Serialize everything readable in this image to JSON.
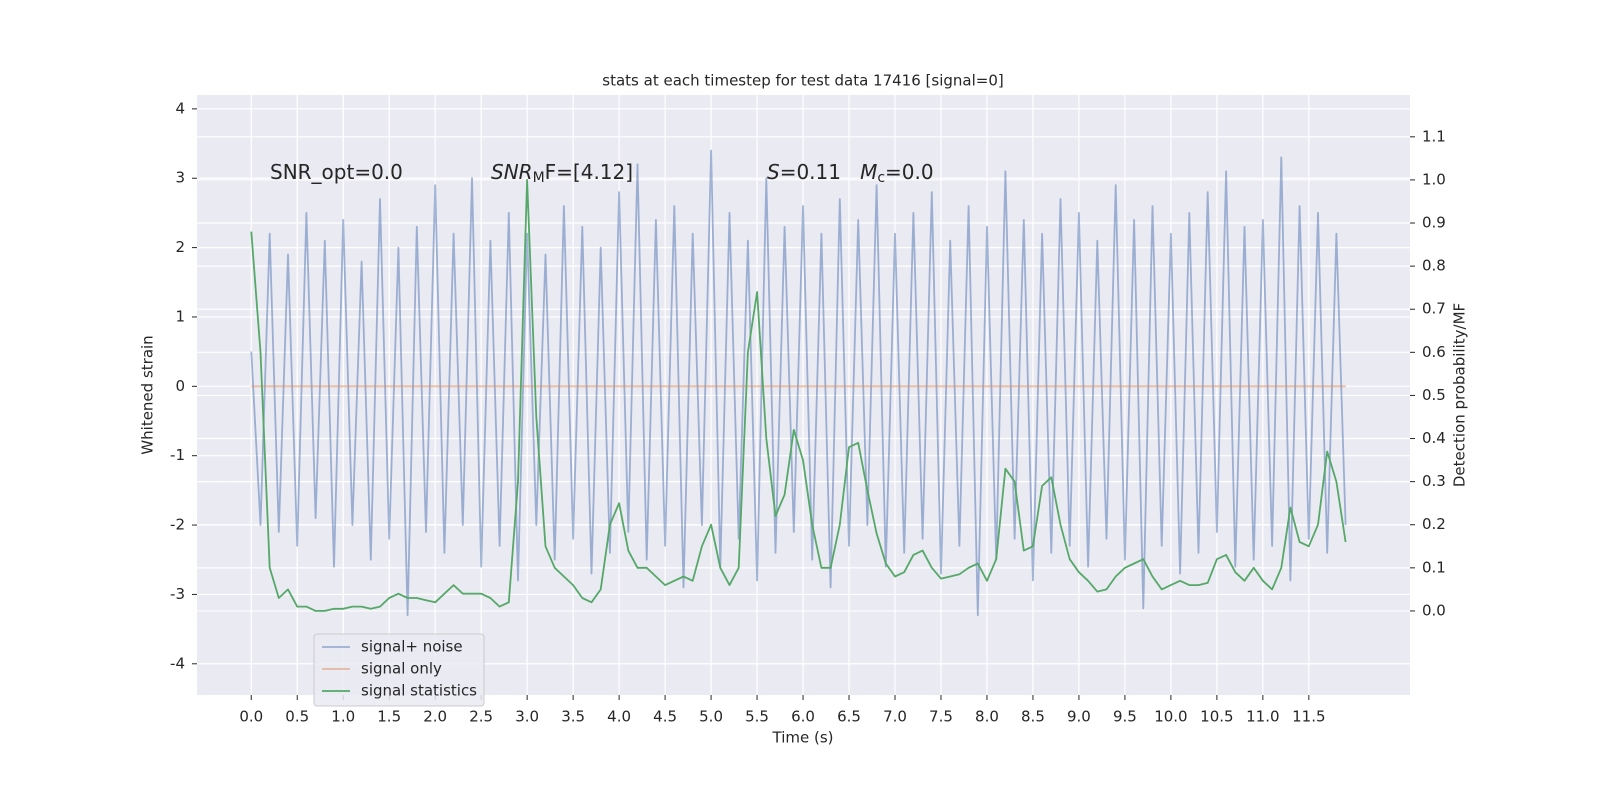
{
  "chart_data": {
    "type": "line",
    "title": "stats at each timestep for test data 17416 [signal=0]",
    "xlabel": "Time (s)",
    "ylabel": "Whitened strain",
    "y2label": "Detection probability/MF",
    "annotations": [
      {
        "parts": [
          "SNR_opt=0.0"
        ]
      },
      {
        "parts": [
          "SNR",
          "M",
          "F=[4.12]"
        ]
      },
      {
        "parts": [
          "S",
          "=0.11   ",
          "M",
          "c",
          "=0.0"
        ]
      }
    ],
    "xlim": [
      -0.59,
      12.6
    ],
    "ylim": [
      -4.45,
      4.2
    ],
    "y2lim": [
      -0.195,
      1.197
    ],
    "xticks": [
      {
        "value": 0,
        "label": "0.0"
      },
      0.5,
      {
        "value": 1,
        "label": "1.0"
      },
      1.5,
      {
        "value": 2,
        "label": "2.0"
      },
      2.5,
      {
        "value": 3,
        "label": "3.0"
      },
      3.5,
      {
        "value": 4,
        "label": "4.0"
      },
      4.5,
      {
        "value": 5,
        "label": "5.0"
      },
      5.5,
      {
        "value": 6,
        "label": "6.0"
      },
      6.5,
      {
        "value": 7,
        "label": "7.0"
      },
      7.5,
      {
        "value": 8,
        "label": "8.0"
      },
      8.5,
      {
        "value": 9,
        "label": "9.0"
      },
      9.5,
      {
        "value": 10,
        "label": "10.0"
      },
      10.5,
      {
        "value": 11,
        "label": "11.0"
      },
      11.5
    ],
    "yticks": [
      -4,
      -3,
      -2,
      -1,
      0,
      1,
      2,
      3,
      4
    ],
    "y2ticks": [
      {
        "value": 0,
        "label": "0.0"
      },
      0.1,
      0.2,
      0.3,
      0.4,
      0.5,
      0.6,
      0.7,
      0.8,
      0.9,
      {
        "value": 1,
        "label": "1.0"
      },
      1.1
    ],
    "grid": true,
    "legend": "lower left",
    "x": [
      0.0,
      0.1,
      0.2,
      0.3,
      0.4,
      0.5,
      0.6,
      0.7,
      0.8,
      0.9,
      1.0,
      1.1,
      1.2,
      1.3,
      1.4,
      1.5,
      1.6,
      1.7,
      1.8,
      1.9,
      2.0,
      2.1,
      2.2,
      2.3,
      2.4,
      2.5,
      2.6,
      2.7,
      2.8,
      2.9,
      3.0,
      3.1,
      3.2,
      3.3,
      3.4,
      3.5,
      3.6,
      3.7,
      3.8,
      3.9,
      4.0,
      4.1,
      4.2,
      4.3,
      4.4,
      4.5,
      4.6,
      4.7,
      4.8,
      4.9,
      5.0,
      5.1,
      5.2,
      5.3,
      5.4,
      5.5,
      5.6,
      5.7,
      5.8,
      5.9,
      6.0,
      6.1,
      6.2,
      6.3,
      6.4,
      6.5,
      6.6,
      6.7,
      6.8,
      6.9,
      7.0,
      7.1,
      7.2,
      7.3,
      7.4,
      7.5,
      7.6,
      7.7,
      7.8,
      7.9,
      8.0,
      8.1,
      8.2,
      8.3,
      8.4,
      8.5,
      8.6,
      8.7,
      8.8,
      8.9,
      9.0,
      9.1,
      9.2,
      9.3,
      9.4,
      9.5,
      9.6,
      9.7,
      9.8,
      9.9,
      10.0,
      10.1,
      10.2,
      10.3,
      10.4,
      10.5,
      10.6,
      10.7,
      10.8,
      10.9,
      11.0,
      11.1,
      11.2,
      11.3,
      11.4,
      11.5,
      11.6,
      11.7,
      11.8,
      11.9
    ],
    "series": [
      {
        "name": "signal+ noise",
        "color": "#4c72b0",
        "alpha": 0.5,
        "values": [
          0.5,
          -2.0,
          2.2,
          -2.1,
          1.9,
          -2.3,
          2.5,
          -1.9,
          2.1,
          -2.6,
          2.4,
          -2.0,
          1.8,
          -2.5,
          2.7,
          -2.2,
          2.0,
          -3.3,
          2.3,
          -2.1,
          2.9,
          -2.4,
          2.2,
          -2.0,
          3.0,
          -2.6,
          2.1,
          -2.3,
          2.5,
          -2.8,
          2.2,
          -2.0,
          1.9,
          -2.5,
          2.6,
          -2.2,
          2.3,
          -2.7,
          2.0,
          -2.4,
          2.8,
          -2.1,
          3.2,
          -2.5,
          2.4,
          -2.3,
          2.6,
          -2.9,
          2.2,
          -2.0,
          3.4,
          -2.6,
          2.5,
          -2.2,
          2.1,
          -2.8,
          3.0,
          -2.4,
          2.3,
          -2.1,
          2.6,
          -2.5,
          2.2,
          -2.9,
          2.7,
          -2.3,
          2.4,
          -2.0,
          2.9,
          -2.6,
          2.2,
          -2.4,
          2.5,
          -2.2,
          2.8,
          -2.7,
          2.1,
          -2.3,
          2.6,
          -3.3,
          2.3,
          -2.5,
          3.1,
          -2.2,
          2.4,
          -2.8,
          2.2,
          -2.4,
          2.7,
          -2.3,
          2.5,
          -2.6,
          2.1,
          -2.2,
          2.9,
          -2.5,
          2.4,
          -3.2,
          2.6,
          -2.3,
          2.2,
          -2.7,
          2.5,
          -2.4,
          2.8,
          -2.1,
          3.1,
          -2.6,
          2.3,
          -2.5,
          2.4,
          -2.3,
          3.3,
          -2.8,
          2.6,
          -2.2,
          2.5,
          -2.4,
          2.2,
          -2.0
        ]
      },
      {
        "name": "signal only",
        "color": "#dd8452",
        "alpha": 0.5,
        "values": [
          0,
          0,
          0,
          0,
          0,
          0,
          0,
          0,
          0,
          0,
          0,
          0,
          0,
          0,
          0,
          0,
          0,
          0,
          0,
          0,
          0,
          0,
          0,
          0,
          0,
          0,
          0,
          0,
          0,
          0,
          0,
          0,
          0,
          0,
          0,
          0,
          0,
          0,
          0,
          0,
          0,
          0,
          0,
          0,
          0,
          0,
          0,
          0,
          0,
          0,
          0,
          0,
          0,
          0,
          0,
          0,
          0,
          0,
          0,
          0,
          0,
          0,
          0,
          0,
          0,
          0,
          0,
          0,
          0,
          0,
          0,
          0,
          0,
          0,
          0,
          0,
          0,
          0,
          0,
          0,
          0,
          0,
          0,
          0,
          0,
          0,
          0,
          0,
          0,
          0,
          0,
          0,
          0,
          0,
          0,
          0,
          0,
          0,
          0,
          0,
          0,
          0,
          0,
          0,
          0,
          0,
          0,
          0,
          0,
          0,
          0,
          0,
          0,
          0,
          0,
          0,
          0,
          0,
          0,
          0
        ]
      },
      {
        "name": "signal statistics",
        "color": "#55a868",
        "alpha": 1,
        "axis": "y2",
        "values": [
          0.88,
          0.6,
          0.1,
          0.03,
          0.05,
          0.01,
          0.01,
          0.0,
          0.0,
          0.005,
          0.005,
          0.01,
          0.01,
          0.005,
          0.01,
          0.03,
          0.04,
          0.03,
          0.03,
          0.025,
          0.02,
          0.04,
          0.06,
          0.04,
          0.04,
          0.04,
          0.03,
          0.01,
          0.02,
          0.3,
          1.0,
          0.45,
          0.15,
          0.1,
          0.08,
          0.06,
          0.03,
          0.02,
          0.05,
          0.2,
          0.25,
          0.14,
          0.1,
          0.1,
          0.08,
          0.06,
          0.07,
          0.08,
          0.07,
          0.15,
          0.2,
          0.1,
          0.06,
          0.1,
          0.6,
          0.74,
          0.4,
          0.22,
          0.27,
          0.42,
          0.35,
          0.2,
          0.1,
          0.1,
          0.2,
          0.38,
          0.39,
          0.28,
          0.18,
          0.11,
          0.08,
          0.09,
          0.13,
          0.14,
          0.1,
          0.075,
          0.08,
          0.085,
          0.1,
          0.11,
          0.07,
          0.12,
          0.33,
          0.3,
          0.14,
          0.15,
          0.29,
          0.31,
          0.2,
          0.12,
          0.09,
          0.07,
          0.045,
          0.05,
          0.08,
          0.1,
          0.11,
          0.12,
          0.08,
          0.05,
          0.06,
          0.07,
          0.06,
          0.06,
          0.065,
          0.12,
          0.13,
          0.09,
          0.07,
          0.1,
          0.07,
          0.05,
          0.1,
          0.24,
          0.16,
          0.15,
          0.2,
          0.37,
          0.3,
          0.16
        ]
      }
    ]
  }
}
